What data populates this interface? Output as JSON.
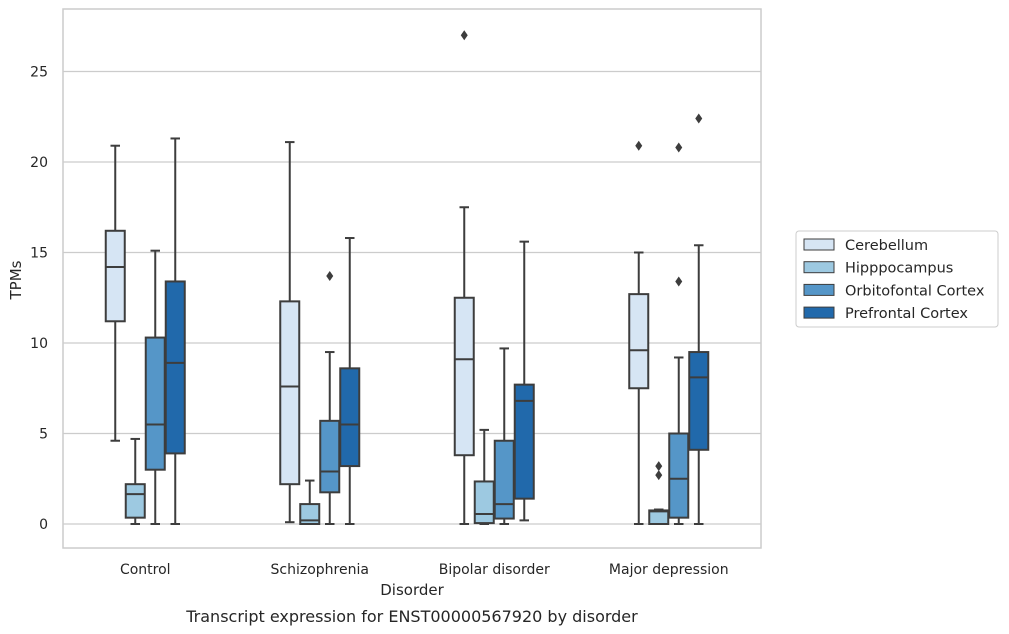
{
  "chart_data": {
    "type": "box",
    "caption": "Transcript expression for ENST00000567920 by disorder",
    "xlabel": "Disorder",
    "ylabel": "TPMs",
    "ylim": [
      -1.3,
      28.5
    ],
    "yticks": [
      0,
      5,
      10,
      15,
      20,
      25
    ],
    "categories": [
      "Control",
      "Schizophrenia",
      "Bipolar disorder",
      "Major depression"
    ],
    "grid": true,
    "legend_position": "right",
    "series": [
      {
        "name": "Cerebellum",
        "color": "#d6e5f4",
        "boxes": [
          {
            "min": 4.6,
            "q1": 11.2,
            "median": 14.2,
            "q3": 16.2,
            "max": 20.9,
            "outliers": []
          },
          {
            "min": 0.1,
            "q1": 2.2,
            "median": 7.6,
            "q3": 12.3,
            "max": 21.1,
            "outliers": []
          },
          {
            "min": 0.0,
            "q1": 3.8,
            "median": 9.1,
            "q3": 12.5,
            "max": 17.5,
            "outliers": [
              27.0
            ]
          },
          {
            "min": 0.0,
            "q1": 7.5,
            "median": 9.6,
            "q3": 12.7,
            "max": 15.0,
            "outliers": [
              20.9
            ]
          }
        ]
      },
      {
        "name": "Hipppocampus",
        "color": "#9dc9e1",
        "boxes": [
          {
            "min": 0.0,
            "q1": 0.35,
            "median": 1.65,
            "q3": 2.2,
            "max": 4.7,
            "outliers": []
          },
          {
            "min": 0.0,
            "q1": 0.0,
            "median": 0.2,
            "q3": 1.1,
            "max": 2.4,
            "outliers": []
          },
          {
            "min": 0.0,
            "q1": 0.05,
            "median": 0.55,
            "q3": 2.35,
            "max": 5.2,
            "outliers": []
          },
          {
            "min": 0.0,
            "q1": 0.0,
            "median": 0.7,
            "q3": 0.75,
            "max": 0.8,
            "outliers": [
              3.2,
              2.7
            ]
          }
        ]
      },
      {
        "name": "Orbitofontal Cortex",
        "color": "#5596c8",
        "boxes": [
          {
            "min": 0.0,
            "q1": 3.0,
            "median": 5.5,
            "q3": 10.3,
            "max": 15.1,
            "outliers": []
          },
          {
            "min": 0.0,
            "q1": 1.75,
            "median": 2.9,
            "q3": 5.7,
            "max": 9.5,
            "outliers": [
              13.7
            ]
          },
          {
            "min": 0.0,
            "q1": 0.3,
            "median": 1.1,
            "q3": 4.6,
            "max": 9.7,
            "outliers": []
          },
          {
            "min": 0.0,
            "q1": 0.35,
            "median": 2.5,
            "q3": 5.0,
            "max": 9.2,
            "outliers": [
              13.4,
              20.8
            ]
          }
        ]
      },
      {
        "name": "Prefrontal Cortex",
        "color": "#2169ab",
        "boxes": [
          {
            "min": 0.0,
            "q1": 3.9,
            "median": 8.9,
            "q3": 13.4,
            "max": 21.3,
            "outliers": []
          },
          {
            "min": 0.0,
            "q1": 3.2,
            "median": 5.5,
            "q3": 8.6,
            "max": 15.8,
            "outliers": []
          },
          {
            "min": 0.2,
            "q1": 1.4,
            "median": 6.8,
            "q3": 7.7,
            "max": 15.6,
            "outliers": []
          },
          {
            "min": 0.0,
            "q1": 4.1,
            "median": 8.1,
            "q3": 9.5,
            "max": 15.4,
            "outliers": [
              22.4
            ]
          }
        ]
      }
    ]
  }
}
